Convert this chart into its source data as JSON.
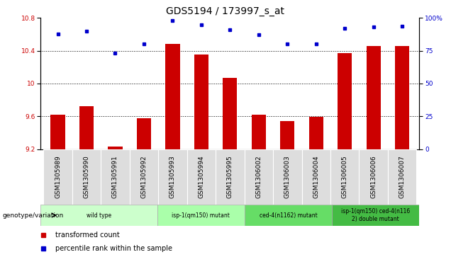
{
  "title": "GDS5194 / 173997_s_at",
  "samples": [
    "GSM1305989",
    "GSM1305990",
    "GSM1305991",
    "GSM1305992",
    "GSM1305993",
    "GSM1305994",
    "GSM1305995",
    "GSM1306002",
    "GSM1306003",
    "GSM1306004",
    "GSM1306005",
    "GSM1306006",
    "GSM1306007"
  ],
  "red_values": [
    9.62,
    9.72,
    9.23,
    9.58,
    10.48,
    10.35,
    10.07,
    9.62,
    9.54,
    9.59,
    10.37,
    10.46,
    10.46
  ],
  "blue_values": [
    88,
    90,
    73,
    80,
    98,
    95,
    91,
    87,
    80,
    80,
    92,
    93,
    94
  ],
  "ylim_left": [
    9.2,
    10.8
  ],
  "ylim_right": [
    0,
    100
  ],
  "yticks_left": [
    9.2,
    9.6,
    10.0,
    10.4,
    10.8
  ],
  "yticks_right": [
    0,
    25,
    50,
    75,
    100
  ],
  "grid_values": [
    9.6,
    10.0,
    10.4
  ],
  "group_info": [
    {
      "label": "wild type",
      "start": 0,
      "end": 4,
      "color": "#ccffcc"
    },
    {
      "label": "isp-1(qm150) mutant",
      "start": 4,
      "end": 7,
      "color": "#aaffaa"
    },
    {
      "label": "ced-4(n1162) mutant",
      "start": 7,
      "end": 10,
      "color": "#66dd66"
    },
    {
      "label": "isp-1(qm150) ced-4(n116\n2) double mutant",
      "start": 10,
      "end": 13,
      "color": "#44bb44"
    }
  ],
  "bar_color": "#cc0000",
  "dot_color": "#0000cc",
  "bar_width": 0.5,
  "title_fontsize": 10,
  "tick_fontsize": 6.5,
  "legend_label_fontsize": 7,
  "genotype_label": "genotype/variation",
  "legend_transformed": "transformed count",
  "legend_percentile": "percentile rank within the sample",
  "bg_color_plot": "#ffffff",
  "bg_color_fig": "#ffffff",
  "cell_color": "#dddddd"
}
